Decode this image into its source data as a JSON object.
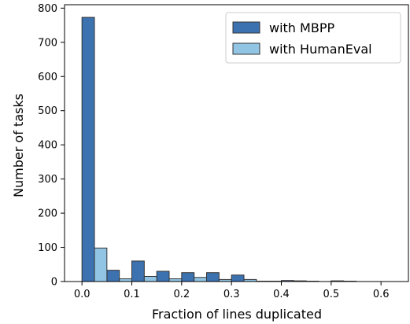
{
  "chart_data": {
    "type": "bar",
    "subtype": "histogram",
    "xlabel": "Fraction of lines duplicated",
    "ylabel": "Number of tasks",
    "xlim": [
      -0.035,
      0.655
    ],
    "ylim": [
      0,
      810
    ],
    "xticks": [
      "0.0",
      "0.1",
      "0.2",
      "0.3",
      "0.4",
      "0.5",
      "0.6"
    ],
    "yticks": [
      "0",
      "100",
      "200",
      "300",
      "400",
      "500",
      "600",
      "700",
      "800"
    ],
    "grid": false,
    "legend_position": "top-right",
    "bin_width": 0.025,
    "series": [
      {
        "name": "with MBPP",
        "color": "#3d72b1",
        "bins": [
          {
            "x0": 0.0,
            "value": 773
          },
          {
            "x0": 0.05,
            "value": 33
          },
          {
            "x0": 0.1,
            "value": 60
          },
          {
            "x0": 0.15,
            "value": 30
          },
          {
            "x0": 0.2,
            "value": 26
          },
          {
            "x0": 0.25,
            "value": 26
          },
          {
            "x0": 0.3,
            "value": 19
          },
          {
            "x0": 0.35,
            "value": 1
          },
          {
            "x0": 0.4,
            "value": 3
          },
          {
            "x0": 0.45,
            "value": 1
          },
          {
            "x0": 0.5,
            "value": 2
          },
          {
            "x0": 0.55,
            "value": 0
          }
        ]
      },
      {
        "name": "with HumanEval",
        "color": "#92c5e4",
        "bins": [
          {
            "x0": 0.025,
            "value": 98
          },
          {
            "x0": 0.075,
            "value": 8
          },
          {
            "x0": 0.125,
            "value": 15
          },
          {
            "x0": 0.175,
            "value": 8
          },
          {
            "x0": 0.225,
            "value": 12
          },
          {
            "x0": 0.275,
            "value": 6
          },
          {
            "x0": 0.325,
            "value": 6
          },
          {
            "x0": 0.375,
            "value": 1
          },
          {
            "x0": 0.425,
            "value": 2
          },
          {
            "x0": 0.475,
            "value": 0
          },
          {
            "x0": 0.525,
            "value": 1
          },
          {
            "x0": 0.575,
            "value": 0
          }
        ]
      }
    ]
  }
}
